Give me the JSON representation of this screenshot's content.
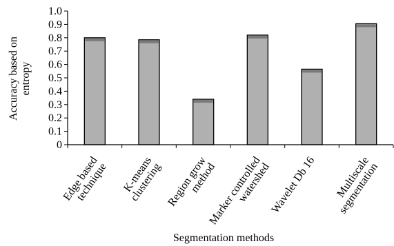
{
  "chart_data": {
    "type": "bar",
    "title": "",
    "xlabel": "Segmentation methods",
    "ylabel_lines": [
      "Accuracy based on",
      "entropy"
    ],
    "categories": [
      [
        "Edge based",
        "technique"
      ],
      [
        "K-means",
        "clustering"
      ],
      [
        "Region grow",
        "method"
      ],
      [
        "Marker controlled",
        "watershed"
      ],
      [
        "Wavelet Db 16"
      ],
      [
        "Multiscale",
        "segmentation"
      ]
    ],
    "values": [
      0.8,
      0.785,
      0.34,
      0.82,
      0.565,
      0.905
    ],
    "ylim": [
      0,
      1.0
    ],
    "yticks": [
      "0",
      "0.1",
      "0.2",
      "0.3",
      "0.4",
      "0.5",
      "0.6",
      "0.7",
      "0.8",
      "0.9",
      "1.0"
    ],
    "grid": false,
    "legend": "none",
    "colors": {
      "bar_fill": "#b0b0b0",
      "bar_top": "#7a7a7a",
      "bar_stroke": "#000000"
    }
  }
}
